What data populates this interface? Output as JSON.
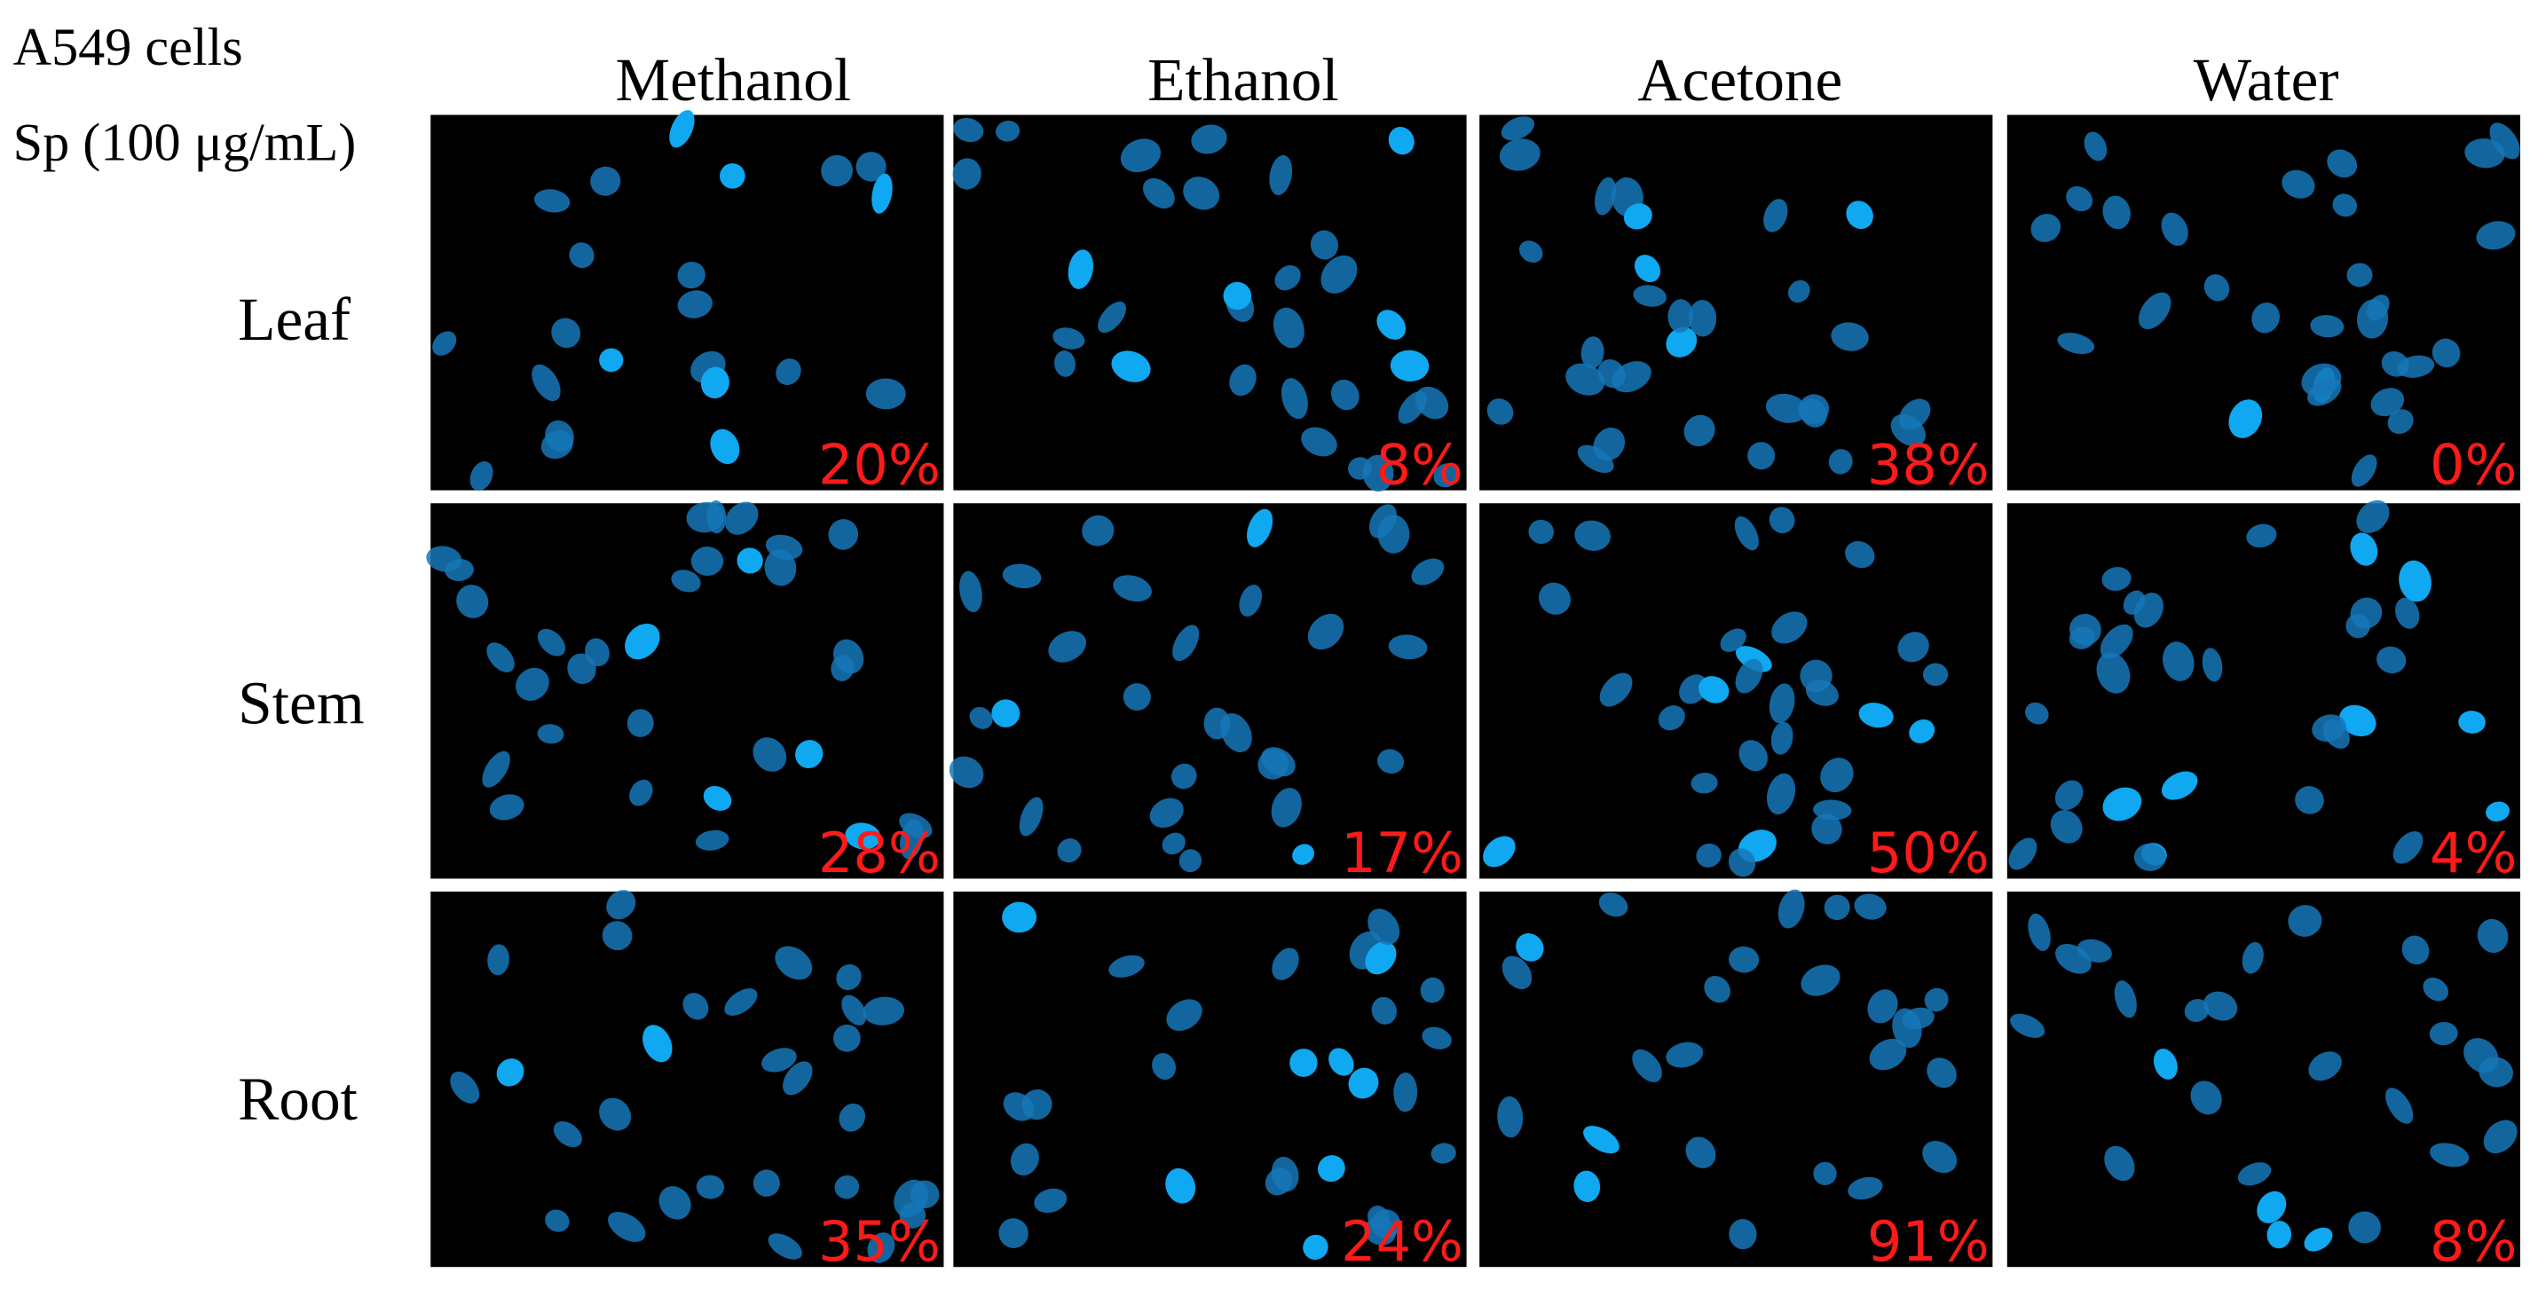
{
  "header": {
    "cell_line": "A549 cells",
    "treatment": "Sp (100 μg/mL)"
  },
  "columns": [
    "Methanol",
    "Ethanol",
    "Acetone",
    "Water"
  ],
  "rows": [
    {
      "label": "Leaf",
      "values": [
        "20%",
        "8%",
        "38%",
        "0%"
      ]
    },
    {
      "label": "Stem",
      "values": [
        "28%",
        "17%",
        "50%",
        "4%"
      ]
    },
    {
      "label": "Root",
      "values": [
        "35%",
        "24%",
        "91%",
        "8%"
      ]
    }
  ]
}
